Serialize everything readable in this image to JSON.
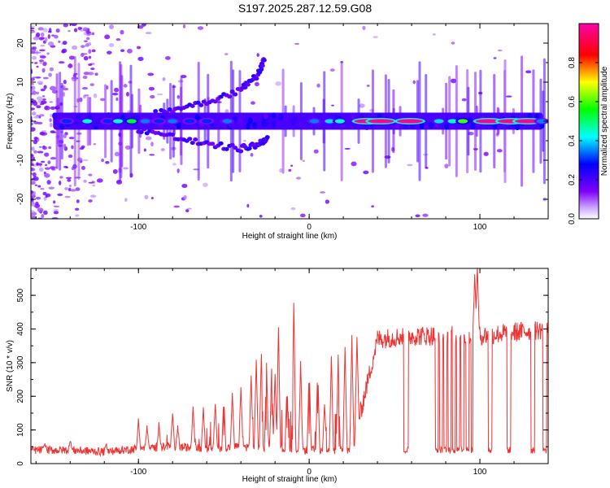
{
  "title": "S197.2025.287.12.59.G08",
  "chart_data": [
    {
      "type": "heatmap",
      "name": "spectrogram",
      "xlabel": "Height of straight line (km)",
      "ylabel": "Frequency (Hz)",
      "xlim": [
        -163,
        140
      ],
      "ylim": [
        -25,
        25
      ],
      "xticks": [
        -100,
        0,
        100
      ],
      "yticks": [
        -20,
        -10,
        0,
        10,
        20
      ],
      "colorbar": {
        "label": "Normalized spectral amplitude",
        "range": [
          0,
          1
        ],
        "ticks": [
          "0.0",
          "0.2",
          "0.4",
          "0.6",
          "0.8"
        ],
        "tick_values": [
          0.0,
          0.2,
          0.4,
          0.6,
          0.8
        ],
        "colors": [
          "#ffffff",
          "#7f00ff",
          "#0000ff",
          "#00ffff",
          "#00ff00",
          "#ffff00",
          "#ff0000",
          "#ff00ff"
        ]
      },
      "main_tone": {
        "x_start": -150,
        "x_end": 137,
        "freq": 0,
        "blobs": [
          {
            "x": -142,
            "amp": 0.3
          },
          {
            "x": -130,
            "amp": 0.45
          },
          {
            "x": -118,
            "amp": 0.3
          },
          {
            "x": -112,
            "amp": 0.45
          },
          {
            "x": -104,
            "amp": 0.55
          },
          {
            "x": -96,
            "amp": 0.35
          },
          {
            "x": -88,
            "amp": 0.3
          },
          {
            "x": -80,
            "amp": 0.35
          },
          {
            "x": -70,
            "amp": 0.3
          },
          {
            "x": -60,
            "amp": 0.3
          },
          {
            "x": -48,
            "amp": 0.35
          },
          {
            "x": 3,
            "amp": 0.35
          },
          {
            "x": 12,
            "amp": 0.4
          },
          {
            "x": 18,
            "amp": 0.45
          },
          {
            "x": 34,
            "amp": 0.98
          },
          {
            "x": 42,
            "amp": 0.98
          },
          {
            "x": 59,
            "amp": 0.98
          },
          {
            "x": 76,
            "amp": 0.4
          },
          {
            "x": 84,
            "amp": 0.45
          },
          {
            "x": 90,
            "amp": 0.6
          },
          {
            "x": 105,
            "amp": 0.98
          },
          {
            "x": 118,
            "amp": 0.98
          },
          {
            "x": 128,
            "amp": 0.98
          },
          {
            "x": 136,
            "amp": 0.35
          }
        ]
      },
      "branch_tracks": [
        {
          "name": "upper-branch",
          "x": [
            -100,
            -80,
            -60,
            -40,
            -30,
            -26
          ],
          "freq": [
            1,
            3,
            5,
            8,
            12,
            16
          ]
        },
        {
          "name": "lower-branch",
          "x": [
            -100,
            -80,
            -60,
            -40,
            -30,
            -24
          ],
          "freq": [
            -2,
            -4,
            -6,
            -7,
            -6,
            -4
          ]
        }
      ]
    },
    {
      "type": "line",
      "name": "snr",
      "color": "#ee3333",
      "xlabel": "Height of straight line (km)",
      "ylabel": "SNR (10 * v/v)",
      "xlim": [
        -163,
        140
      ],
      "ylim": [
        0,
        580
      ],
      "xticks": [
        -100,
        0,
        100
      ],
      "yticks": [
        0,
        100,
        200,
        300,
        400,
        500
      ],
      "baseline_x": [
        -163,
        -140,
        -120,
        -100,
        -80,
        -60,
        -40,
        -20,
        0,
        10,
        20,
        25,
        40,
        60,
        80,
        100,
        120,
        140
      ],
      "baseline_y": [
        40,
        40,
        35,
        45,
        50,
        45,
        50,
        45,
        40,
        40,
        40,
        40,
        370,
        380,
        380,
        380,
        390,
        400
      ],
      "dropouts": [
        {
          "x0": 55.5,
          "x1": 58,
          "y": 40
        },
        {
          "x0": 74,
          "x1": 75.5,
          "y": 40
        },
        {
          "x0": 76.5,
          "x1": 78,
          "y": 40
        },
        {
          "x0": 79,
          "x1": 80.5,
          "y": 40
        },
        {
          "x0": 81.5,
          "x1": 83,
          "y": 40
        },
        {
          "x0": 84,
          "x1": 85.5,
          "y": 40
        },
        {
          "x0": 86.5,
          "x1": 88,
          "y": 45
        },
        {
          "x0": 89,
          "x1": 90.5,
          "y": 45
        },
        {
          "x0": 92,
          "x1": 93.5,
          "y": 45
        },
        {
          "x0": 95,
          "x1": 96.5,
          "y": 40
        },
        {
          "x0": 105,
          "x1": 107,
          "y": 40
        },
        {
          "x0": 116,
          "x1": 118,
          "y": 40
        },
        {
          "x0": 130,
          "x1": 132,
          "y": 40
        },
        {
          "x0": 137,
          "x1": 139,
          "y": 40
        }
      ],
      "spikes": [
        {
          "x": -155,
          "y": 60
        },
        {
          "x": -140,
          "y": 70
        },
        {
          "x": -119,
          "y": 60
        },
        {
          "x": -100,
          "y": 130
        },
        {
          "x": -95,
          "y": 110
        },
        {
          "x": -88,
          "y": 120
        },
        {
          "x": -80,
          "y": 150
        },
        {
          "x": -77,
          "y": 110
        },
        {
          "x": -68,
          "y": 170
        },
        {
          "x": -62,
          "y": 170
        },
        {
          "x": -55,
          "y": 180
        },
        {
          "x": -50,
          "y": 200
        },
        {
          "x": -45,
          "y": 210
        },
        {
          "x": -40,
          "y": 230
        },
        {
          "x": -34,
          "y": 260
        },
        {
          "x": -31,
          "y": 310
        },
        {
          "x": -28,
          "y": 330
        },
        {
          "x": -25,
          "y": 300
        },
        {
          "x": -22,
          "y": 280
        },
        {
          "x": -20,
          "y": 270
        },
        {
          "x": -18,
          "y": 410
        },
        {
          "x": -13,
          "y": 240
        },
        {
          "x": -9,
          "y": 480
        },
        {
          "x": -5,
          "y": 300
        },
        {
          "x": 0,
          "y": 290
        },
        {
          "x": 5,
          "y": 290
        },
        {
          "x": 9,
          "y": 180
        },
        {
          "x": 13,
          "y": 320
        },
        {
          "x": 17,
          "y": 320
        },
        {
          "x": 21,
          "y": 350
        },
        {
          "x": 25,
          "y": 380
        },
        {
          "x": 28,
          "y": 380
        },
        {
          "x": 97,
          "y": 560
        },
        {
          "x": 98.5,
          "y": 590
        }
      ]
    }
  ]
}
